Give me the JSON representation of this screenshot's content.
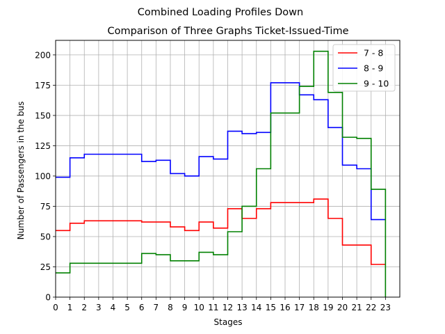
{
  "figure": {
    "suptitle": "Combined Loading Profiles Down"
  },
  "chart_data": {
    "type": "line",
    "drawstyle": "steps-post",
    "title": "Comparison of Three Graphs Ticket-Issued-Time",
    "xlabel": "Stages",
    "ylabel": "Number of Passengers in the bus",
    "xlim": [
      0,
      24
    ],
    "ylim": [
      0,
      212
    ],
    "xticks": [
      0,
      1,
      2,
      3,
      4,
      5,
      6,
      7,
      8,
      9,
      10,
      11,
      12,
      13,
      14,
      15,
      16,
      17,
      18,
      19,
      20,
      21,
      22,
      23
    ],
    "xtick_labels": [
      "0",
      "1",
      "2",
      "3",
      "4",
      "5",
      "6",
      "7",
      "8",
      "9",
      "10",
      "11",
      "12",
      "13",
      "14",
      "15",
      "16",
      "17",
      "18",
      "19",
      "20",
      "21",
      "22",
      "23"
    ],
    "yticks": [
      0,
      25,
      50,
      75,
      100,
      125,
      150,
      175,
      200
    ],
    "ytick_labels": [
      "0",
      "25",
      "50",
      "75",
      "100",
      "125",
      "150",
      "175",
      "200"
    ],
    "grid": true,
    "legend_position": "top-right",
    "x": [
      0,
      1,
      2,
      3,
      4,
      5,
      6,
      7,
      8,
      9,
      10,
      11,
      12,
      13,
      14,
      15,
      16,
      17,
      18,
      19,
      20,
      21,
      22,
      23
    ],
    "series": [
      {
        "name": "7 - 8",
        "color": "#ff0000",
        "values": [
          55,
          61,
          63,
          63,
          63,
          63,
          62,
          62,
          58,
          55,
          62,
          57,
          73,
          65,
          73,
          78,
          78,
          78,
          81,
          65,
          43,
          43,
          27,
          27
        ]
      },
      {
        "name": "8 - 9",
        "color": "#0000ff",
        "values": [
          99,
          115,
          118,
          118,
          118,
          118,
          112,
          113,
          102,
          100,
          116,
          114,
          137,
          135,
          136,
          177,
          177,
          167,
          163,
          140,
          109,
          106,
          64,
          64
        ]
      },
      {
        "name": "9 - 10",
        "color": "#008000",
        "values": [
          20,
          28,
          28,
          28,
          28,
          28,
          36,
          35,
          30,
          30,
          37,
          35,
          54,
          75,
          106,
          152,
          152,
          174,
          203,
          169,
          132,
          131,
          89,
          0
        ]
      }
    ]
  }
}
